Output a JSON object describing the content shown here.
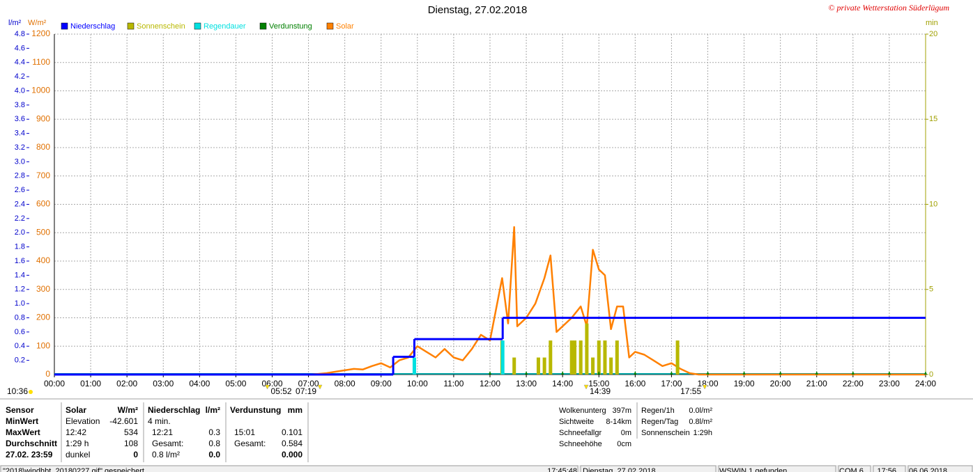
{
  "chart_data": {
    "type": "line",
    "title": "Dienstag, 27.02.2018",
    "copyright": "© private Wetterstation Süderlügum",
    "y_label": "W/m²",
    "y2_label": "l/m²",
    "y3_label": "min",
    "xlim": [
      "00:00",
      "24:00"
    ],
    "xticks": [
      "00:00",
      "01:00",
      "02:00",
      "03:00",
      "04:00",
      "05:00",
      "06:00",
      "07:00",
      "08:00",
      "09:00",
      "10:00",
      "11:00",
      "12:00",
      "13:00",
      "14:00",
      "15:00",
      "16:00",
      "17:00",
      "18:00",
      "19:00",
      "20:00",
      "21:00",
      "22:00",
      "23:00",
      "24:00"
    ],
    "ylim": [
      0,
      1200
    ],
    "yticks": [
      0,
      100,
      200,
      300,
      400,
      500,
      600,
      700,
      800,
      900,
      1000,
      1100,
      1200
    ],
    "y2lim": [
      0,
      4.8
    ],
    "y2ticks": [
      0.2,
      0.4,
      0.6,
      0.8,
      {
        "value": 1,
        "label": "1.0"
      },
      1.2,
      1.4,
      1.6,
      1.8,
      {
        "value": 2,
        "label": "2.0"
      },
      2.2,
      2.4,
      2.6,
      2.8,
      {
        "value": 3,
        "label": "3.0"
      },
      3.2,
      3.4,
      3.6,
      3.8,
      {
        "value": 4,
        "label": "4.0"
      },
      4.2,
      4.4,
      4.6,
      4.8
    ],
    "y3lim": [
      0,
      20
    ],
    "y3ticks": [
      0,
      5,
      10,
      15,
      20
    ],
    "grid": true,
    "series": [
      {
        "name": "Niederschlag",
        "color": "#0000ff",
        "axis": "y2",
        "style": "step",
        "x": [
          "00:00",
          "09:20",
          "09:55",
          "12:21"
        ],
        "values": [
          0,
          0.25,
          0.5,
          0.8
        ]
      },
      {
        "name": "Sonnenschein",
        "color": "#b8b800",
        "axis": "y3",
        "style": "bar",
        "x": [
          "12:20",
          "12:40",
          "13:20",
          "13:30",
          "13:40",
          "14:15",
          "14:20",
          "14:30",
          "14:40",
          "14:50",
          "15:00",
          "15:10",
          "15:20",
          "15:30",
          "17:10"
        ],
        "values": [
          2,
          1,
          1,
          1,
          2,
          2,
          2,
          2,
          3,
          1,
          2,
          2,
          1,
          2,
          2
        ]
      },
      {
        "name": "Regendauer",
        "color": "#00e0e0",
        "axis": "y3",
        "style": "bar",
        "x": [
          "09:55",
          "12:21"
        ],
        "values": [
          1,
          2
        ]
      },
      {
        "name": "Verdunstung",
        "color": "#008000",
        "axis": "y2",
        "style": "marker",
        "x": [
          "12:00",
          "13:00",
          "14:00",
          "15:00",
          "16:00",
          "17:00",
          "18:00",
          "19:00",
          "20:00",
          "21:00",
          "22:00",
          "23:00",
          "24:00"
        ],
        "values": [
          0,
          0,
          0,
          0,
          0,
          0,
          0,
          0,
          0,
          0,
          0,
          0,
          0
        ]
      },
      {
        "name": "Solar",
        "color": "#ff8000",
        "axis": "y",
        "style": "line",
        "x": [
          "00:00",
          "07:00",
          "07:15",
          "07:30",
          "07:45",
          "08:00",
          "08:15",
          "08:30",
          "08:45",
          "09:00",
          "09:15",
          "09:30",
          "09:45",
          "10:00",
          "10:15",
          "10:30",
          "10:45",
          "11:00",
          "11:15",
          "11:30",
          "11:45",
          "12:00",
          "12:10",
          "12:20",
          "12:30",
          "12:40",
          "12:45",
          "13:00",
          "13:15",
          "13:30",
          "13:40",
          "13:50",
          "14:00",
          "14:15",
          "14:30",
          "14:40",
          "14:50",
          "15:00",
          "15:10",
          "15:20",
          "15:30",
          "15:40",
          "15:50",
          "16:00",
          "16:15",
          "16:30",
          "16:45",
          "17:00",
          "17:15",
          "17:30",
          "17:45",
          "18:00",
          "24:00"
        ],
        "values": [
          0,
          0,
          2,
          5,
          10,
          15,
          20,
          18,
          30,
          40,
          25,
          50,
          60,
          100,
          80,
          60,
          90,
          60,
          50,
          90,
          140,
          120,
          230,
          340,
          180,
          520,
          170,
          200,
          250,
          340,
          420,
          150,
          170,
          200,
          240,
          170,
          440,
          370,
          350,
          160,
          240,
          240,
          60,
          80,
          70,
          50,
          30,
          40,
          20,
          5,
          0,
          0,
          0
        ]
      }
    ],
    "annotations": {
      "day_length": "10:36",
      "times": [
        "05:52",
        "07:19",
        "14:39",
        "17:55"
      ]
    }
  },
  "panel": {
    "labels": [
      "Sensor",
      "MinWert",
      "MaxWert",
      "Durchschnitt",
      "27.02. 23:59"
    ],
    "solar": {
      "header": [
        "Solar",
        "W/m²"
      ],
      "min": [
        "Elevation",
        "-42.601"
      ],
      "max": [
        "12:42",
        "534"
      ],
      "avg": [
        "1:29 h",
        "108"
      ],
      "now": [
        "dunkel",
        "0"
      ]
    },
    "niederschlag": {
      "header": [
        "Niederschlag",
        "l/m²"
      ],
      "min": [
        "4 min."
      ],
      "max": [
        "12:21",
        "0.3"
      ],
      "avg": [
        "Gesamt:",
        "0.8"
      ],
      "now": [
        "0.8 l/m²",
        "0.0"
      ]
    },
    "verdunstung": {
      "header": [
        "Verdunstung",
        "mm"
      ],
      "max": [
        "15:01",
        "0.101"
      ],
      "avg": [
        "Gesamt:",
        "0.584"
      ],
      "now": [
        "0.000"
      ]
    },
    "weather": [
      [
        "Wolkenunterg",
        "397m"
      ],
      [
        "Sichtweite",
        "8-14km"
      ],
      [
        "Schneefallgr",
        "0m"
      ],
      [
        "Schneehöhe",
        "0cm"
      ]
    ],
    "rain": [
      [
        "Regen/1h",
        "0.0l/m²"
      ],
      [
        "Regen/Tag",
        "0.8l/m²"
      ],
      [
        "Sonnenschein",
        "1:29h"
      ]
    ]
  },
  "status_bar": [
    "\"2018\\windhbt_20180227.gif\" gespeichert",
    "17:45:48",
    "Dienstag, 27.02.2018",
    "WSWIN 1 gefunden",
    "COM 6",
    "17:56",
    "06.06.2018"
  ]
}
